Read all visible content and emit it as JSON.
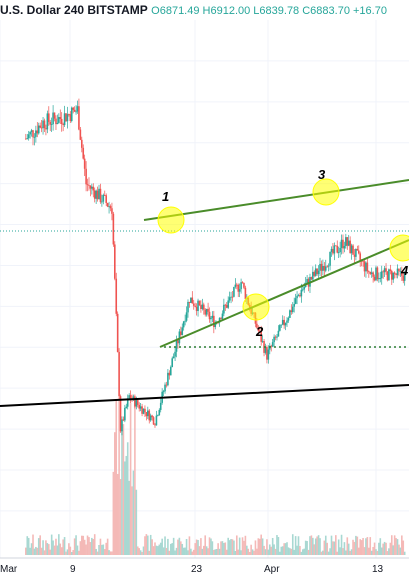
{
  "header": {
    "symbol_line": "U.S. Dollar  240  BITSTAMP",
    "ohlc_line": "O6871.49 H6912.00 L6839.78 C6883.70 +16.70"
  },
  "colors": {
    "up": "#26a69a",
    "down": "#ef5350",
    "trendline": "#4a8c2a",
    "support": "#000000",
    "highlight": "#ffff00",
    "dotted_level": "#2e7d32"
  },
  "chart_data": {
    "type": "candlestick",
    "title": "",
    "symbol": "U.S. Dollar",
    "interval": "240",
    "exchange": "BITSTAMP",
    "last_bar": {
      "open": 6871.49,
      "high": 6912.0,
      "low": 6839.78,
      "close": 6883.7,
      "change": 16.7
    },
    "x_tick_labels": [
      "Mar",
      "9",
      "23",
      "Apr",
      "13"
    ],
    "y_tick_labels": [],
    "grid": true,
    "approx_price_path": [
      {
        "x": "Mar 1",
        "y": 8550
      },
      {
        "x": "Mar 3",
        "y": 8750
      },
      {
        "x": "Mar 5",
        "y": 8800
      },
      {
        "x": "Mar 7",
        "y": 8900
      },
      {
        "x": "Mar 8",
        "y": 8000
      },
      {
        "x": "Mar 9",
        "y": 7900
      },
      {
        "x": "Mar 11",
        "y": 7700
      },
      {
        "x": "Mar 12",
        "y": 5000
      },
      {
        "x": "Mar 13",
        "y": 5400
      },
      {
        "x": "Mar 16",
        "y": 5100
      },
      {
        "x": "Mar 19",
        "y": 6200
      },
      {
        "x": "Mar 20",
        "y": 6600
      },
      {
        "x": "Mar 23",
        "y": 6300
      },
      {
        "x": "Mar 26",
        "y": 6800
      },
      {
        "x": "Mar 29",
        "y": 5900
      },
      {
        "x": "Apr 2",
        "y": 6700
      },
      {
        "x": "Apr 7",
        "y": 7300
      },
      {
        "x": "Apr 10",
        "y": 6900
      },
      {
        "x": "Apr 14",
        "y": 6880
      }
    ],
    "annotations": [
      "1",
      "2",
      "3",
      "4"
    ]
  }
}
